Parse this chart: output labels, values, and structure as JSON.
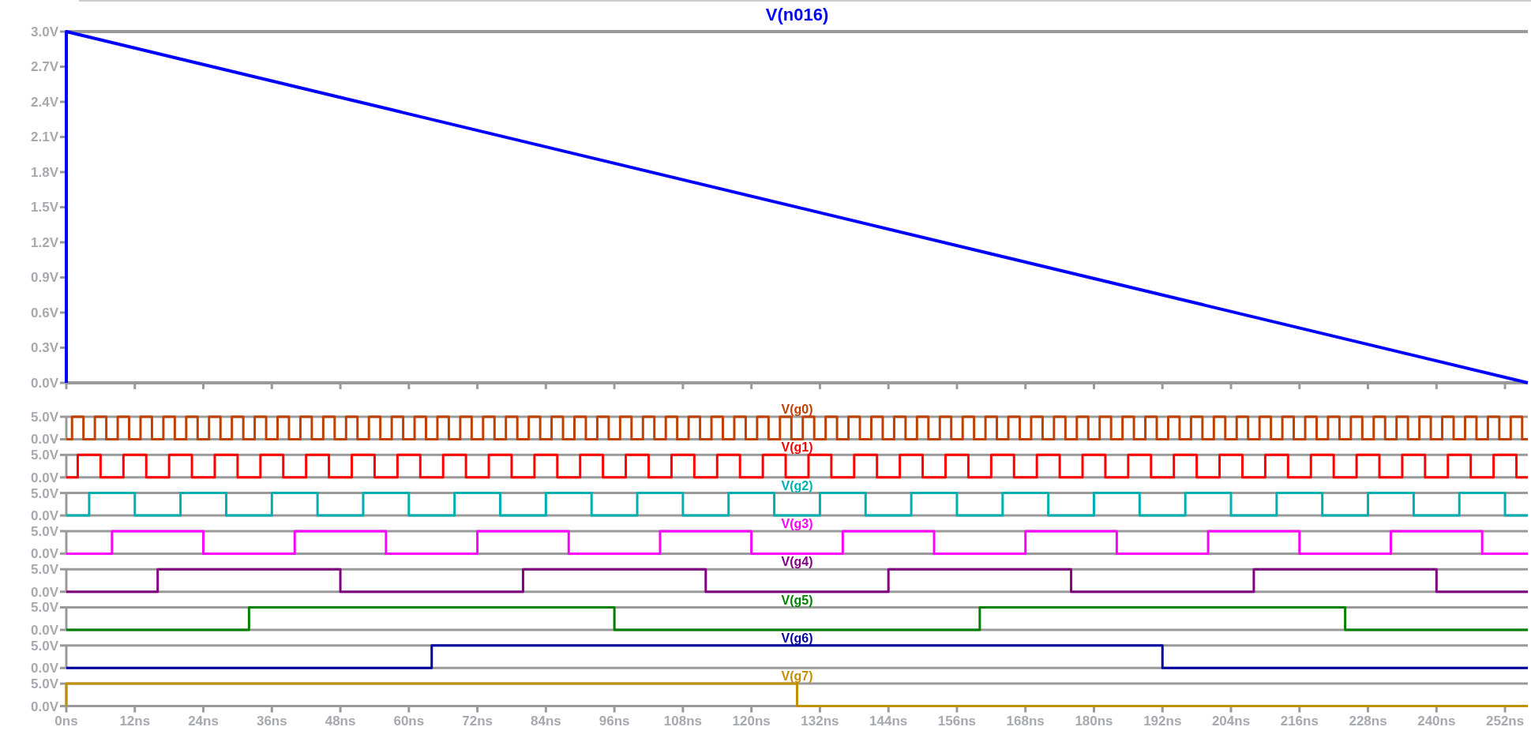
{
  "chart_data": [
    {
      "type": "line",
      "legend": "top",
      "xlim": [
        0,
        256
      ],
      "ylim": [
        0,
        3.0
      ],
      "tick_labels": "y",
      "grid": false,
      "xticks": [
        {
          "value": 0,
          "label": null
        },
        {
          "value": 12,
          "label": null
        },
        {
          "value": 24,
          "label": null
        },
        {
          "value": 36,
          "label": null
        },
        {
          "value": 48,
          "label": null
        },
        {
          "value": 60,
          "label": null
        },
        {
          "value": 72,
          "label": null
        },
        {
          "value": 84,
          "label": null
        },
        {
          "value": 96,
          "label": null
        },
        {
          "value": 108,
          "label": null
        },
        {
          "value": 120,
          "label": null
        },
        {
          "value": 132,
          "label": null
        },
        {
          "value": 144,
          "label": null
        },
        {
          "value": 156,
          "label": null
        },
        {
          "value": 168,
          "label": null
        },
        {
          "value": 180,
          "label": null
        },
        {
          "value": 192,
          "label": null
        },
        {
          "value": 204,
          "label": null
        },
        {
          "value": 216,
          "label": null
        },
        {
          "value": 228,
          "label": null
        },
        {
          "value": 240,
          "label": null
        },
        {
          "value": 252,
          "label": null
        }
      ],
      "yticks": [
        {
          "value": 0,
          "label": "0.0V"
        },
        {
          "value": 0.3,
          "label": "0.3V"
        },
        {
          "value": 0.6,
          "label": "0.6V"
        },
        {
          "value": 0.9,
          "label": "0.9V"
        },
        {
          "value": 1.2,
          "label": "1.2V"
        },
        {
          "value": 1.5,
          "label": "1.5V"
        },
        {
          "value": 1.8,
          "label": "1.8V"
        },
        {
          "value": 2.1,
          "label": "2.1V"
        },
        {
          "value": 2.4,
          "label": "2.4V"
        },
        {
          "value": 2.7,
          "label": "2.7V"
        },
        {
          "value": 3.0,
          "label": "3.0V"
        }
      ],
      "series": [
        {
          "name": "V(n016)",
          "color": "#0000ff",
          "x": [
            0,
            0,
            256
          ],
          "values": [
            0,
            3.0,
            0
          ]
        }
      ]
    },
    {
      "type": "step",
      "legend": "top",
      "xlim": [
        0,
        256
      ],
      "ylim": [
        0,
        5
      ],
      "tick_labels": "y",
      "grid": false,
      "yticks": [
        {
          "value": 0,
          "label": "0.0V"
        },
        {
          "value": 5,
          "label": "5.0V"
        }
      ],
      "series": [
        {
          "name": "V(g0)",
          "color": "#c04000",
          "x": [
            0,
            1,
            3,
            5,
            7,
            9,
            11,
            13,
            15,
            17,
            19,
            21,
            23,
            25,
            27,
            29,
            31,
            33,
            35,
            37,
            39,
            41,
            43,
            45,
            47,
            49,
            51,
            53,
            55,
            57,
            59,
            61,
            63,
            65,
            67,
            69,
            71,
            73,
            75,
            77,
            79,
            81,
            83,
            85,
            87,
            89,
            91,
            93,
            95,
            97,
            99,
            101,
            103,
            105,
            107,
            109,
            111,
            113,
            115,
            117,
            119,
            121,
            123,
            125,
            127,
            129,
            131,
            133,
            135,
            137,
            139,
            141,
            143,
            145,
            147,
            149,
            151,
            153,
            155,
            157,
            159,
            161,
            163,
            165,
            167,
            169,
            171,
            173,
            175,
            177,
            179,
            181,
            183,
            185,
            187,
            189,
            191,
            193,
            195,
            197,
            199,
            201,
            203,
            205,
            207,
            209,
            211,
            213,
            215,
            217,
            219,
            221,
            223,
            225,
            227,
            229,
            231,
            233,
            235,
            237,
            239,
            241,
            243,
            245,
            247,
            249,
            251,
            253,
            255,
            256
          ],
          "values": [
            0,
            5,
            0,
            5,
            0,
            5,
            0,
            5,
            0,
            5,
            0,
            5,
            0,
            5,
            0,
            5,
            0,
            5,
            0,
            5,
            0,
            5,
            0,
            5,
            0,
            5,
            0,
            5,
            0,
            5,
            0,
            5,
            0,
            5,
            0,
            5,
            0,
            5,
            0,
            5,
            0,
            5,
            0,
            5,
            0,
            5,
            0,
            5,
            0,
            5,
            0,
            5,
            0,
            5,
            0,
            5,
            0,
            5,
            0,
            5,
            0,
            5,
            0,
            5,
            0,
            5,
            0,
            5,
            0,
            5,
            0,
            5,
            0,
            5,
            0,
            5,
            0,
            5,
            0,
            5,
            0,
            5,
            0,
            5,
            0,
            5,
            0,
            5,
            0,
            5,
            0,
            5,
            0,
            5,
            0,
            5,
            0,
            5,
            0,
            5,
            0,
            5,
            0,
            5,
            0,
            5,
            0,
            5,
            0,
            5,
            0,
            5,
            0,
            5,
            0,
            5,
            0,
            5,
            0,
            5,
            0,
            5,
            0,
            5,
            0,
            5,
            0,
            5,
            0,
            0
          ]
        }
      ]
    },
    {
      "type": "step",
      "legend": "top",
      "xlim": [
        0,
        256
      ],
      "ylim": [
        0,
        5
      ],
      "tick_labels": "y",
      "grid": false,
      "yticks": [
        {
          "value": 0,
          "label": "0.0V"
        },
        {
          "value": 5,
          "label": "5.0V"
        }
      ],
      "series": [
        {
          "name": "V(g1)",
          "color": "#ff0000",
          "x": [
            0,
            2,
            6,
            10,
            14,
            18,
            22,
            26,
            30,
            34,
            38,
            42,
            46,
            50,
            54,
            58,
            62,
            66,
            70,
            74,
            78,
            82,
            86,
            90,
            94,
            98,
            102,
            106,
            110,
            114,
            118,
            122,
            126,
            130,
            134,
            138,
            142,
            146,
            150,
            154,
            158,
            162,
            166,
            170,
            174,
            178,
            182,
            186,
            190,
            194,
            198,
            202,
            206,
            210,
            214,
            218,
            222,
            226,
            230,
            234,
            238,
            242,
            246,
            250,
            254,
            256
          ],
          "values": [
            0,
            5,
            0,
            5,
            0,
            5,
            0,
            5,
            0,
            5,
            0,
            5,
            0,
            5,
            0,
            5,
            0,
            5,
            0,
            5,
            0,
            5,
            0,
            5,
            0,
            5,
            0,
            5,
            0,
            5,
            0,
            5,
            0,
            5,
            0,
            5,
            0,
            5,
            0,
            5,
            0,
            5,
            0,
            5,
            0,
            5,
            0,
            5,
            0,
            5,
            0,
            5,
            0,
            5,
            0,
            5,
            0,
            5,
            0,
            5,
            0,
            5,
            0,
            5,
            0,
            0
          ]
        }
      ]
    },
    {
      "type": "step",
      "legend": "top",
      "xlim": [
        0,
        256
      ],
      "ylim": [
        0,
        5
      ],
      "tick_labels": "y",
      "grid": false,
      "yticks": [
        {
          "value": 0,
          "label": "0.0V"
        },
        {
          "value": 5,
          "label": "5.0V"
        }
      ],
      "series": [
        {
          "name": "V(g2)",
          "color": "#00b0b0",
          "x": [
            0,
            4,
            12,
            20,
            28,
            36,
            44,
            52,
            60,
            68,
            76,
            84,
            92,
            100,
            108,
            116,
            124,
            132,
            140,
            148,
            156,
            164,
            172,
            180,
            188,
            196,
            204,
            212,
            220,
            228,
            236,
            244,
            252,
            256
          ],
          "values": [
            0,
            5,
            0,
            5,
            0,
            5,
            0,
            5,
            0,
            5,
            0,
            5,
            0,
            5,
            0,
            5,
            0,
            5,
            0,
            5,
            0,
            5,
            0,
            5,
            0,
            5,
            0,
            5,
            0,
            5,
            0,
            5,
            0,
            0
          ]
        }
      ]
    },
    {
      "type": "step",
      "legend": "top",
      "xlim": [
        0,
        256
      ],
      "ylim": [
        0,
        5
      ],
      "tick_labels": "y",
      "grid": false,
      "yticks": [
        {
          "value": 0,
          "label": "0.0V"
        },
        {
          "value": 5,
          "label": "5.0V"
        }
      ],
      "series": [
        {
          "name": "V(g3)",
          "color": "#ff00ff",
          "x": [
            0,
            8,
            24,
            40,
            56,
            72,
            88,
            104,
            120,
            136,
            152,
            168,
            184,
            200,
            216,
            232,
            248,
            256
          ],
          "values": [
            0,
            5,
            0,
            5,
            0,
            5,
            0,
            5,
            0,
            5,
            0,
            5,
            0,
            5,
            0,
            5,
            0,
            0
          ]
        }
      ]
    },
    {
      "type": "step",
      "legend": "top",
      "xlim": [
        0,
        256
      ],
      "ylim": [
        0,
        5
      ],
      "tick_labels": "y",
      "grid": false,
      "yticks": [
        {
          "value": 0,
          "label": "0.0V"
        },
        {
          "value": 5,
          "label": "5.0V"
        }
      ],
      "series": [
        {
          "name": "V(g4)",
          "color": "#800080",
          "x": [
            0,
            16,
            48,
            80,
            112,
            144,
            176,
            208,
            240,
            256
          ],
          "values": [
            0,
            5,
            0,
            5,
            0,
            5,
            0,
            5,
            0,
            0
          ]
        }
      ]
    },
    {
      "type": "step",
      "legend": "top",
      "xlim": [
        0,
        256
      ],
      "ylim": [
        0,
        5
      ],
      "tick_labels": "y",
      "grid": false,
      "yticks": [
        {
          "value": 0,
          "label": "0.0V"
        },
        {
          "value": 5,
          "label": "5.0V"
        }
      ],
      "series": [
        {
          "name": "V(g5)",
          "color": "#008000",
          "x": [
            0,
            32,
            96,
            160,
            224,
            256
          ],
          "values": [
            0,
            5,
            0,
            5,
            0,
            0
          ]
        }
      ]
    },
    {
      "type": "step",
      "legend": "top",
      "xlim": [
        0,
        256
      ],
      "ylim": [
        0,
        5
      ],
      "tick_labels": "y",
      "grid": false,
      "yticks": [
        {
          "value": 0,
          "label": "0.0V"
        },
        {
          "value": 5,
          "label": "5.0V"
        }
      ],
      "series": [
        {
          "name": "V(g6)",
          "color": "#0000a0",
          "x": [
            0,
            64,
            192,
            256
          ],
          "values": [
            0,
            5,
            0,
            0
          ]
        }
      ]
    },
    {
      "type": "step",
      "legend": "top",
      "xlim": [
        0,
        256
      ],
      "ylim": [
        0,
        5
      ],
      "grid": false,
      "xticks": [
        {
          "value": 0,
          "label": "0ns"
        },
        {
          "value": 12,
          "label": "12ns"
        },
        {
          "value": 24,
          "label": "24ns"
        },
        {
          "value": 36,
          "label": "36ns"
        },
        {
          "value": 48,
          "label": "48ns"
        },
        {
          "value": 60,
          "label": "60ns"
        },
        {
          "value": 72,
          "label": "72ns"
        },
        {
          "value": 84,
          "label": "84ns"
        },
        {
          "value": 96,
          "label": "96ns"
        },
        {
          "value": 108,
          "label": "108ns"
        },
        {
          "value": 120,
          "label": "120ns"
        },
        {
          "value": 132,
          "label": "132ns"
        },
        {
          "value": 144,
          "label": "144ns"
        },
        {
          "value": 156,
          "label": "156ns"
        },
        {
          "value": 168,
          "label": "168ns"
        },
        {
          "value": 180,
          "label": "180ns"
        },
        {
          "value": 192,
          "label": "192ns"
        },
        {
          "value": 204,
          "label": "204ns"
        },
        {
          "value": 216,
          "label": "216ns"
        },
        {
          "value": 228,
          "label": "228ns"
        },
        {
          "value": 240,
          "label": "240ns"
        },
        {
          "value": 252,
          "label": "252ns"
        }
      ],
      "yticks": [
        {
          "value": 0,
          "label": "0.0V"
        },
        {
          "value": 5,
          "label": "5.0V"
        }
      ],
      "series": [
        {
          "name": "V(g7)",
          "color": "#c09000",
          "x": [
            0,
            0,
            128,
            256
          ],
          "values": [
            0,
            5,
            0,
            0
          ]
        }
      ]
    }
  ]
}
